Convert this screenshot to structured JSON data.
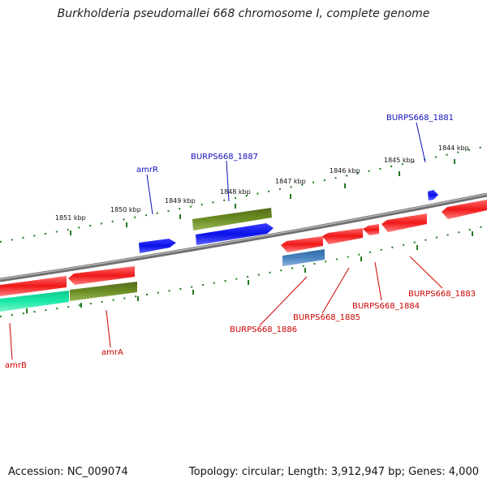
{
  "title": "Burkholderia pseudomallei 668 chromosome I, complete genome",
  "footer": {
    "accession": "Accession: NC_009074",
    "topology": "Topology: circular; Length: 3,912,947 bp; Genes: 4,000"
  },
  "colors": {
    "backbone": "#8c8c8c",
    "tick": "#207a20",
    "red_feature": "#ee1111",
    "red_label": "#cc0000",
    "blue_feature": "#0a12e8",
    "blue_label": "#1010bb",
    "olive_feature": "#6b8e23",
    "teal_feature": "#19e8a8",
    "steel_feature": "#4a84c0"
  },
  "ticks": [
    "1851 kbp",
    "1850 kbp",
    "1849 kbp",
    "1848 kbp",
    "1847 kbp",
    "1846 kbp",
    "1845 kbp",
    "1844 kbp"
  ],
  "labels": {
    "amrR": "amrR",
    "burps1887": "BURPS668_1887",
    "burps1881": "BURPS668_1881",
    "burps1883": "BURPS668_1883",
    "burps1884": "BURPS668_1884",
    "burps1885": "BURPS668_1885",
    "burps1886": "BURPS668_1886",
    "amrA": "amrA",
    "amrB": "amrB"
  }
}
